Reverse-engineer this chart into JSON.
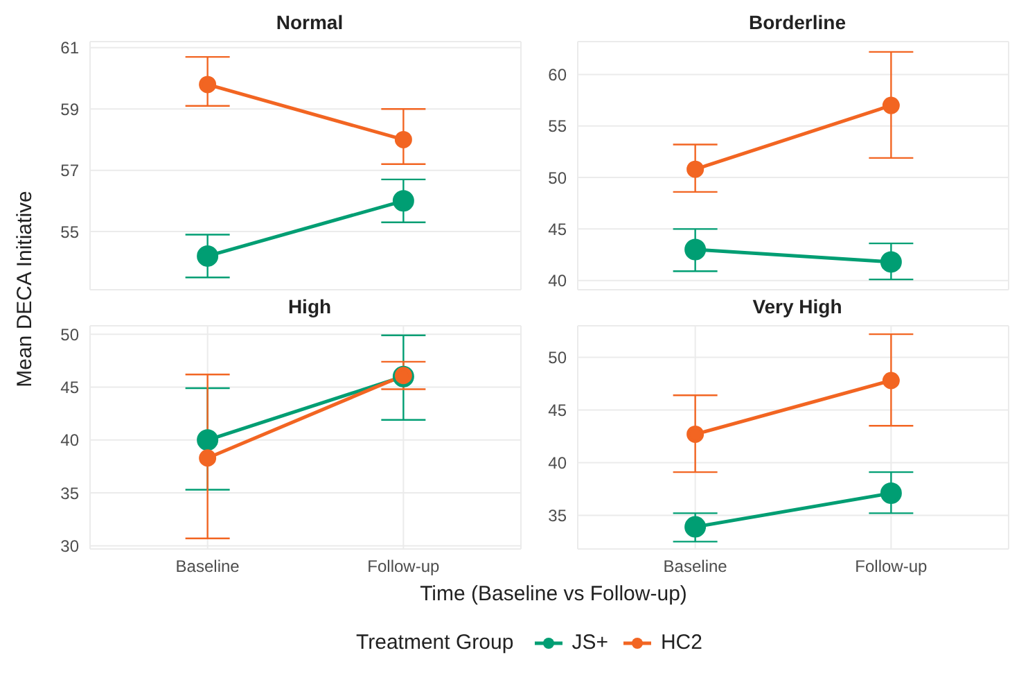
{
  "chart_data": [
    {
      "type": "line",
      "title": "Normal",
      "xlabel": "Time (Baseline vs Follow-up)",
      "ylabel": "Mean DECA Initiative",
      "legend_title": "Treatment Group",
      "legend": "bottom",
      "categories": [
        null,
        null
      ],
      "ylim": [
        53.1,
        61.2
      ],
      "yticks": [
        55,
        57,
        59,
        61
      ],
      "grid": true,
      "marker": "circle",
      "tick_labels": "y",
      "series": [
        {
          "name": "JS+",
          "color": "#009e73",
          "values": [
            54.2,
            56.0
          ],
          "errors": [
            [
              53.5,
              54.9
            ],
            [
              55.3,
              56.7
            ]
          ]
        },
        {
          "name": "HC2",
          "color": "#f26522",
          "values": [
            59.8,
            58.0
          ],
          "errors": [
            [
              59.1,
              60.7
            ],
            [
              57.2,
              59.0
            ]
          ]
        }
      ]
    },
    {
      "type": "line",
      "title": "Borderline",
      "categories": [
        null,
        null
      ],
      "ylim": [
        39.1,
        63.2
      ],
      "yticks": [
        40,
        45,
        50,
        55,
        60
      ],
      "grid": true,
      "marker": "circle",
      "tick_labels": "y",
      "series": [
        {
          "color": "#009e73",
          "values": [
            43.0,
            41.8
          ],
          "errors": [
            [
              40.9,
              45.0
            ],
            [
              40.1,
              43.6
            ]
          ]
        },
        {
          "color": "#f26522",
          "values": [
            50.8,
            57.0
          ],
          "errors": [
            [
              48.6,
              53.2
            ],
            [
              51.9,
              62.2
            ]
          ]
        }
      ]
    },
    {
      "type": "line",
      "title": "High",
      "categories": [
        "Baseline",
        "Follow-up"
      ],
      "ylim": [
        29.7,
        50.8
      ],
      "yticks": [
        30,
        35,
        40,
        45,
        50
      ],
      "grid": true,
      "marker": "circle",
      "series": [
        {
          "color": "#009e73",
          "values": [
            40.0,
            46.0
          ],
          "errors": [
            [
              35.3,
              44.9
            ],
            [
              41.9,
              49.9
            ]
          ]
        },
        {
          "color": "#f26522",
          "values": [
            38.3,
            46.1
          ],
          "errors": [
            [
              30.7,
              46.2
            ],
            [
              44.8,
              47.4
            ]
          ]
        }
      ]
    },
    {
      "type": "line",
      "title": "Very High",
      "categories": [
        "Baseline",
        "Follow-up"
      ],
      "ylim": [
        31.8,
        53.0
      ],
      "yticks": [
        35,
        40,
        45,
        50
      ],
      "grid": true,
      "marker": "circle",
      "series": [
        {
          "color": "#009e73",
          "values": [
            33.9,
            37.1
          ],
          "errors": [
            [
              32.5,
              35.2
            ],
            [
              35.2,
              39.1
            ]
          ]
        },
        {
          "color": "#f26522",
          "values": [
            42.7,
            47.8
          ],
          "errors": [
            [
              39.1,
              46.4
            ],
            [
              43.5,
              52.2
            ]
          ]
        }
      ]
    }
  ]
}
